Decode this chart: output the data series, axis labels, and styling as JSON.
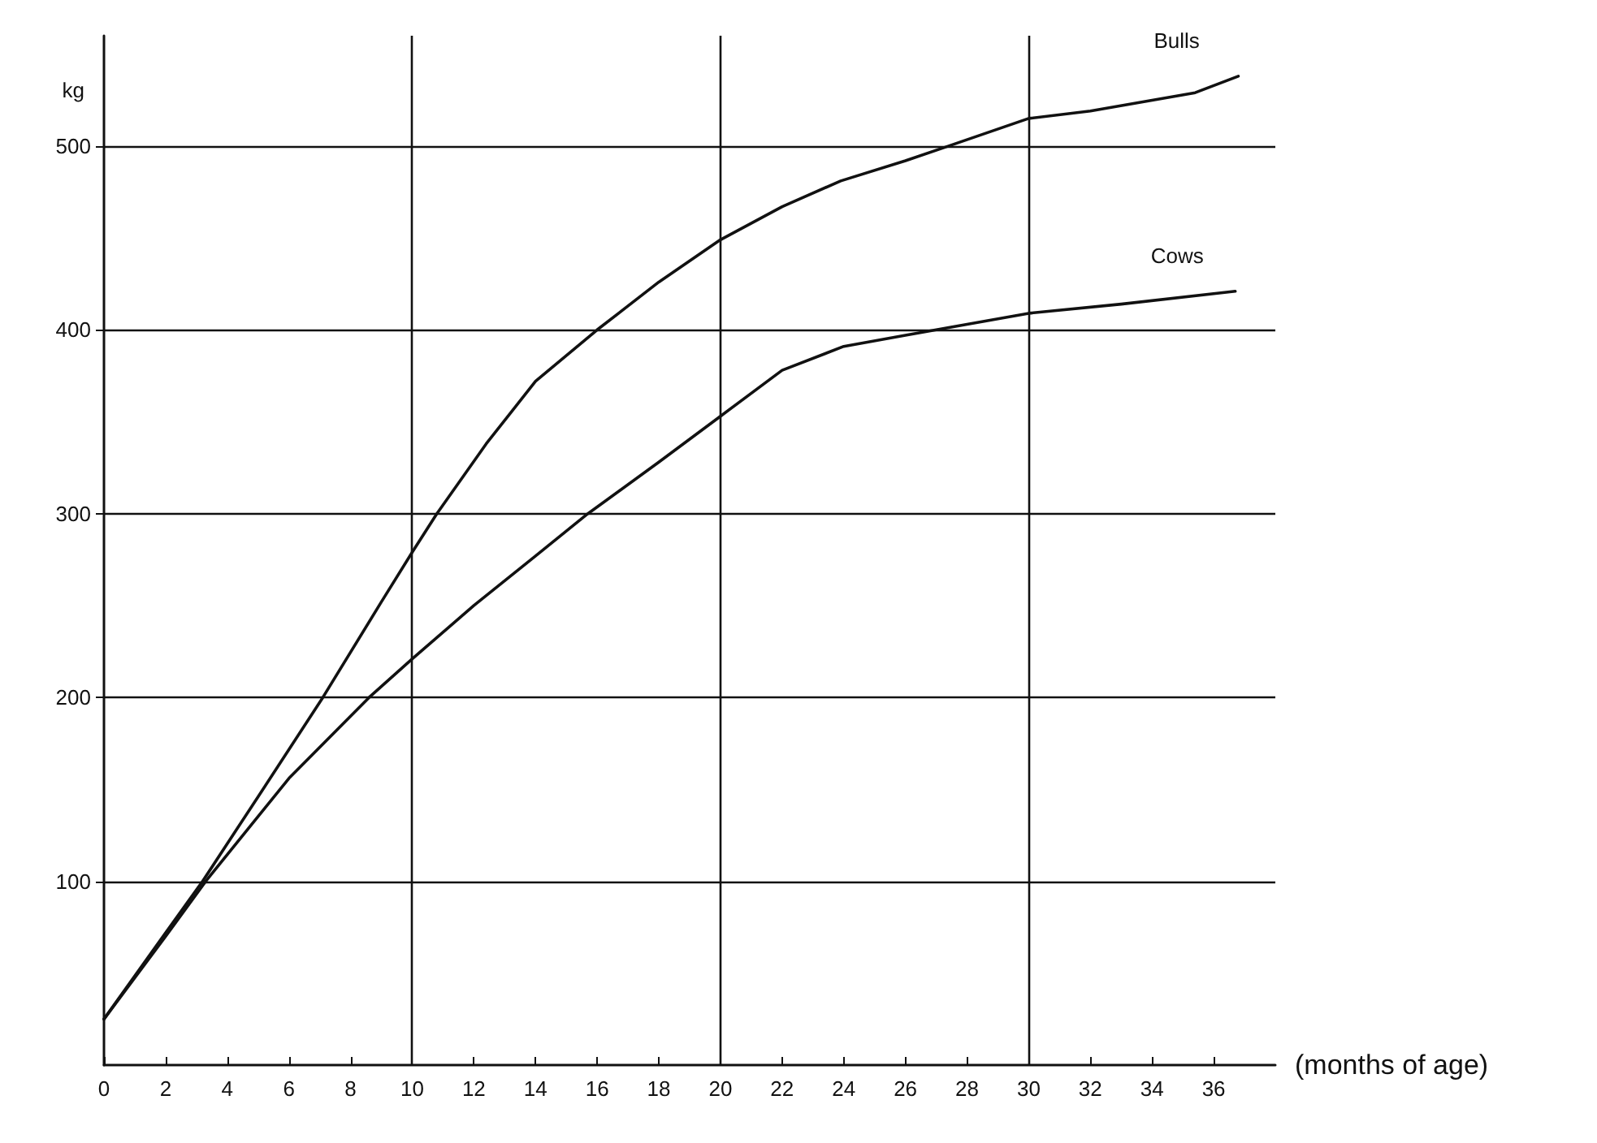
{
  "chart_data": {
    "type": "line",
    "xlabel": "(months of age)",
    "ylabel": "kg",
    "series": [
      {
        "name": "Bulls",
        "color": "#111111",
        "x": [
          0,
          2,
          3.2,
          5,
          7.1,
          9,
          10,
          10.8,
          12.4,
          14,
          16,
          18,
          20,
          22,
          23.9,
          26,
          27.4,
          30,
          32,
          35.4,
          36.8
        ],
        "values": [
          25,
          72,
          100,
          146,
          200,
          252,
          279,
          300,
          338,
          372,
          400,
          426,
          449,
          467,
          481,
          492,
          500,
          515,
          519,
          529,
          538
        ]
      },
      {
        "name": "Cows",
        "color": "#111111",
        "x": [
          0,
          2,
          3.3,
          6,
          8.6,
          10,
          12,
          14,
          15.7,
          18,
          20,
          22,
          24,
          26,
          28,
          30,
          33,
          36.7
        ],
        "values": [
          25,
          70,
          100,
          156,
          200,
          221,
          250,
          277,
          300,
          328,
          353,
          378,
          391,
          397,
          403,
          409,
          414,
          421
        ]
      }
    ],
    "xlim": [
      0,
      38
    ],
    "xticks": [
      0,
      2,
      4,
      6,
      8,
      10,
      12,
      14,
      16,
      18,
      20,
      22,
      24,
      26,
      28,
      30,
      32,
      34,
      36
    ],
    "ylim": [
      0,
      560
    ],
    "yticks": [
      100,
      200,
      300,
      400,
      500
    ],
    "ref_lines": [
      {
        "axis": "y",
        "value": 100,
        "color": "#111111"
      },
      {
        "axis": "y",
        "value": 200,
        "color": "#111111"
      },
      {
        "axis": "y",
        "value": 300,
        "color": "#111111"
      },
      {
        "axis": "y",
        "value": 400,
        "color": "#111111"
      },
      {
        "axis": "y",
        "value": 500,
        "color": "#111111"
      },
      {
        "axis": "x",
        "value": 10,
        "color": "#111111"
      },
      {
        "axis": "x",
        "value": 20,
        "color": "#111111"
      },
      {
        "axis": "x",
        "value": 30,
        "color": "#111111"
      }
    ],
    "grid": false,
    "legend": false,
    "marker": "none",
    "line_style": "solid"
  }
}
